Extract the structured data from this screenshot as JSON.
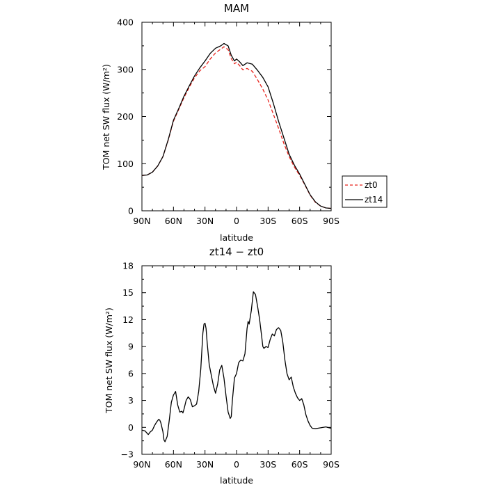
{
  "chart_data": [
    {
      "type": "line",
      "title": "MAM",
      "xlabel": "latitude",
      "ylabel": "TOM net SW flux (W/m²)",
      "xlim": [
        90,
        -90
      ],
      "ylim": [
        0,
        400
      ],
      "x_ticks": [
        90,
        60,
        30,
        0,
        -30,
        -60,
        -90
      ],
      "x_tick_labels": [
        "90N",
        "60N",
        "30N",
        "0",
        "30S",
        "60S",
        "90S"
      ],
      "y_ticks": [
        0,
        100,
        200,
        300,
        400
      ],
      "y_tick_labels": [
        "0",
        "100",
        "200",
        "300",
        "400"
      ],
      "legend_position": "outside-right",
      "series": [
        {
          "name": "zt0",
          "color": "#e8231c",
          "dash": "dashed",
          "x": [
            90,
            85,
            80,
            75,
            70,
            65,
            60,
            55,
            50,
            45,
            40,
            35,
            30,
            25,
            20,
            15,
            12,
            8,
            5,
            2,
            0,
            -3,
            -6,
            -10,
            -15,
            -20,
            -25,
            -30,
            -35,
            -40,
            -45,
            -50,
            -55,
            -60,
            -65,
            -70,
            -75,
            -80,
            -85,
            -90
          ],
          "y": [
            75,
            76,
            82,
            95,
            115,
            150,
            190,
            215,
            240,
            262,
            282,
            297,
            306,
            322,
            335,
            343,
            348,
            342,
            323,
            312,
            315,
            308,
            299,
            302,
            296,
            278,
            258,
            235,
            205,
            175,
            143,
            115,
            93,
            75,
            55,
            33,
            18,
            10,
            6,
            5
          ]
        },
        {
          "name": "zt14",
          "color": "#000000",
          "dash": "solid",
          "x": [
            90,
            85,
            80,
            75,
            70,
            65,
            60,
            55,
            50,
            45,
            40,
            35,
            30,
            25,
            20,
            15,
            12,
            8,
            5,
            2,
            0,
            -3,
            -6,
            -10,
            -15,
            -20,
            -25,
            -30,
            -35,
            -40,
            -45,
            -50,
            -55,
            -60,
            -65,
            -70,
            -75,
            -80,
            -85,
            -90
          ],
          "y": [
            75,
            76,
            82,
            95,
            115,
            151,
            192,
            217,
            243,
            265,
            286,
            303,
            318,
            334,
            345,
            350,
            355,
            350,
            330,
            318,
            322,
            316,
            308,
            314,
            311,
            298,
            283,
            263,
            228,
            190,
            155,
            120,
            97,
            78,
            56,
            34,
            19,
            10,
            6,
            5
          ]
        }
      ]
    },
    {
      "type": "line",
      "title": "zt14 − zt0",
      "xlabel": "latitude",
      "ylabel": "TOM net SW flux (W/m²)",
      "xlim": [
        90,
        -90
      ],
      "ylim": [
        -3,
        18
      ],
      "x_ticks": [
        90,
        60,
        30,
        0,
        -30,
        -60,
        -90
      ],
      "x_tick_labels": [
        "90N",
        "60N",
        "30N",
        "0",
        "30S",
        "60S",
        "90S"
      ],
      "y_ticks": [
        -3,
        0,
        3,
        6,
        9,
        12,
        15,
        18
      ],
      "y_tick_labels": [
        "−3",
        "0",
        "3",
        "6",
        "9",
        "12",
        "15",
        "18"
      ],
      "series": [
        {
          "color": "#000000",
          "dash": "solid",
          "x": [
            90,
            87,
            84,
            82,
            80,
            78,
            76,
            74,
            73,
            72,
            70,
            69,
            68,
            66,
            64,
            62,
            60,
            58,
            56,
            54,
            52,
            51,
            50,
            48,
            46,
            44,
            42,
            40,
            38,
            36,
            34,
            32,
            31,
            30,
            29,
            28,
            26,
            24,
            22,
            20,
            18,
            16,
            14,
            12,
            10,
            8,
            6,
            5,
            4,
            2,
            0,
            -2,
            -4,
            -6,
            -8,
            -10,
            -11,
            -12,
            -14,
            -16,
            -18,
            -20,
            -22,
            -24,
            -25,
            -26,
            -28,
            -30,
            -32,
            -34,
            -36,
            -38,
            -40,
            -42,
            -44,
            -46,
            -48,
            -50,
            -52,
            -54,
            -56,
            -58,
            -60,
            -62,
            -64,
            -66,
            -68,
            -70,
            -72,
            -75,
            -80,
            -85,
            -88,
            -90
          ],
          "y": [
            -0.3,
            -0.4,
            -0.8,
            -0.5,
            -0.3,
            0.2,
            0.6,
            0.9,
            0.8,
            0.5,
            -0.5,
            -1.4,
            -1.6,
            -1.0,
            0.8,
            2.8,
            3.6,
            4.0,
            2.5,
            1.7,
            1.8,
            1.6,
            2.0,
            3.0,
            3.4,
            3.1,
            2.3,
            2.4,
            2.6,
            4.0,
            6.5,
            10.5,
            11.5,
            11.6,
            11.0,
            9.5,
            7.0,
            5.8,
            4.6,
            3.8,
            4.8,
            6.4,
            6.9,
            5.5,
            3.5,
            1.7,
            1.0,
            1.2,
            3.0,
            5.5,
            6.0,
            7.2,
            7.5,
            7.4,
            8.2,
            11.0,
            11.8,
            11.5,
            13.0,
            15.1,
            14.8,
            13.5,
            12.0,
            10.0,
            9.0,
            8.8,
            9.0,
            8.9,
            9.8,
            10.4,
            10.2,
            10.9,
            11.1,
            10.8,
            9.5,
            7.5,
            6.0,
            5.3,
            5.6,
            4.5,
            3.8,
            3.3,
            3.0,
            3.2,
            2.5,
            1.4,
            0.7,
            0.2,
            -0.1,
            -0.15,
            -0.05,
            0.05,
            -0.05,
            -0.1
          ]
        }
      ]
    }
  ]
}
